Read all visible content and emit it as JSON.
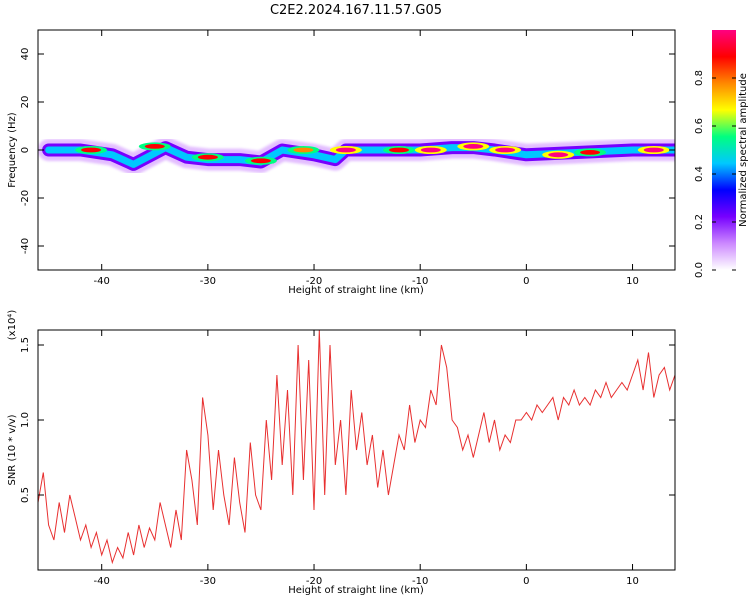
{
  "title": "C2E2.2024.167.11.57.G05",
  "chart_data": [
    {
      "type": "heatmap",
      "xlabel": "Height of straight line (km)",
      "ylabel": "Frequency (Hz)",
      "xlim": [
        -46,
        14
      ],
      "ylim": [
        -50,
        50
      ],
      "xticks": [
        -40,
        -30,
        -20,
        -10,
        0,
        10
      ],
      "yticks": [
        40,
        20,
        0,
        -20,
        -40
      ],
      "colorbar": {
        "label": "Normalized spectral amplitude",
        "range": [
          0,
          1
        ],
        "ticks": [
          0.0,
          0.2,
          0.4,
          0.6,
          0.8
        ],
        "colors": [
          "#ffffff",
          "#cc88ff",
          "#7700ff",
          "#0000ff",
          "#00c8ff",
          "#00ff80",
          "#ffff00",
          "#ff8800",
          "#ff0000",
          "#ff0080"
        ]
      },
      "band": [
        [
          -45,
          0
        ],
        [
          -42,
          0
        ],
        [
          -39,
          -2
        ],
        [
          -37,
          -6
        ],
        [
          -34,
          1
        ],
        [
          -32,
          -3
        ],
        [
          -30,
          -4
        ],
        [
          -27,
          -4
        ],
        [
          -25,
          -5
        ],
        [
          -23,
          0
        ],
        [
          -20,
          -2
        ],
        [
          -18,
          -4
        ],
        [
          -17,
          0
        ],
        [
          -10,
          0
        ],
        [
          -7,
          1
        ],
        [
          -5,
          1
        ],
        [
          -3,
          0
        ],
        [
          0,
          -2
        ],
        [
          5,
          -1
        ],
        [
          10,
          0
        ],
        [
          14,
          0
        ]
      ],
      "blobs": [
        {
          "x": -41,
          "y": 0,
          "a": 0.9
        },
        {
          "x": -35,
          "y": 1.5,
          "a": 0.85
        },
        {
          "x": -30,
          "y": -3,
          "a": 0.9
        },
        {
          "x": -25,
          "y": -4.5,
          "a": 0.85
        },
        {
          "x": -21,
          "y": 0,
          "a": 0.8
        },
        {
          "x": -17,
          "y": 0,
          "a": 1.0
        },
        {
          "x": -12,
          "y": 0,
          "a": 0.9
        },
        {
          "x": -9,
          "y": 0,
          "a": 1.0
        },
        {
          "x": -5,
          "y": 1.5,
          "a": 0.95
        },
        {
          "x": -2,
          "y": 0,
          "a": 1.0
        },
        {
          "x": 3,
          "y": -2,
          "a": 0.95
        },
        {
          "x": 6,
          "y": -1,
          "a": 0.9
        },
        {
          "x": 12,
          "y": 0,
          "a": 1.0
        }
      ]
    },
    {
      "type": "line",
      "xlabel": "Height of straight line (km)",
      "ylabel": "SNR (10 * v/v)",
      "yunit": "(x10⁴)",
      "xlim": [
        -46,
        14
      ],
      "ylim": [
        0.0,
        1.6
      ],
      "xticks": [
        -40,
        -30,
        -20,
        -10,
        0,
        10
      ],
      "yticks": [
        1.5,
        1.0,
        0.5
      ],
      "color": "#e83030",
      "x": [
        -46,
        -45.5,
        -45,
        -44.5,
        -44,
        -43.5,
        -43,
        -42.5,
        -42,
        -41.5,
        -41,
        -40.5,
        -40,
        -39.5,
        -39,
        -38.5,
        -38,
        -37.5,
        -37,
        -36.5,
        -36,
        -35.5,
        -35,
        -34.5,
        -34,
        -33.5,
        -33,
        -32.5,
        -32,
        -31.5,
        -31,
        -30.5,
        -30,
        -29.5,
        -29,
        -28.5,
        -28,
        -27.5,
        -27,
        -26.5,
        -26,
        -25.5,
        -25,
        -24.5,
        -24,
        -23.5,
        -23,
        -22.5,
        -22,
        -21.5,
        -21,
        -20.5,
        -20,
        -19.5,
        -19,
        -18.5,
        -18,
        -17.5,
        -17,
        -16.5,
        -16,
        -15.5,
        -15,
        -14.5,
        -14,
        -13.5,
        -13,
        -12.5,
        -12,
        -11.5,
        -11,
        -10.5,
        -10,
        -9.5,
        -9,
        -8.5,
        -8,
        -7.5,
        -7,
        -6.5,
        -6,
        -5.5,
        -5,
        -4.5,
        -4,
        -3.5,
        -3,
        -2.5,
        -2,
        -1.5,
        -1,
        -0.5,
        0,
        0.5,
        1,
        1.5,
        2,
        2.5,
        3,
        3.5,
        4,
        4.5,
        5,
        5.5,
        6,
        6.5,
        7,
        7.5,
        8,
        8.5,
        9,
        9.5,
        10,
        10.5,
        11,
        11.5,
        12,
        12.5,
        13,
        13.5,
        14
      ],
      "y": [
        0.45,
        0.65,
        0.3,
        0.2,
        0.45,
        0.25,
        0.5,
        0.35,
        0.2,
        0.3,
        0.15,
        0.25,
        0.1,
        0.2,
        0.05,
        0.15,
        0.08,
        0.25,
        0.1,
        0.3,
        0.15,
        0.28,
        0.2,
        0.45,
        0.3,
        0.15,
        0.4,
        0.2,
        0.8,
        0.6,
        0.3,
        1.15,
        0.9,
        0.4,
        0.8,
        0.5,
        0.3,
        0.75,
        0.45,
        0.25,
        0.85,
        0.5,
        0.4,
        1.0,
        0.6,
        1.3,
        0.7,
        1.2,
        0.5,
        1.5,
        0.6,
        1.4,
        0.4,
        1.6,
        0.5,
        1.5,
        0.7,
        1.0,
        0.5,
        1.2,
        0.8,
        1.05,
        0.7,
        0.9,
        0.55,
        0.8,
        0.5,
        0.7,
        0.9,
        0.8,
        1.1,
        0.85,
        1.0,
        0.95,
        1.2,
        1.1,
        1.5,
        1.35,
        1.0,
        0.95,
        0.8,
        0.9,
        0.75,
        0.9,
        1.05,
        0.85,
        1.0,
        0.8,
        0.9,
        0.85,
        1.0,
        1.0,
        1.05,
        1.0,
        1.1,
        1.05,
        1.1,
        1.15,
        1.0,
        1.15,
        1.1,
        1.2,
        1.1,
        1.15,
        1.1,
        1.2,
        1.15,
        1.25,
        1.15,
        1.2,
        1.25,
        1.2,
        1.3,
        1.4,
        1.2,
        1.45,
        1.15,
        1.3,
        1.35,
        1.2,
        1.3
      ]
    }
  ]
}
